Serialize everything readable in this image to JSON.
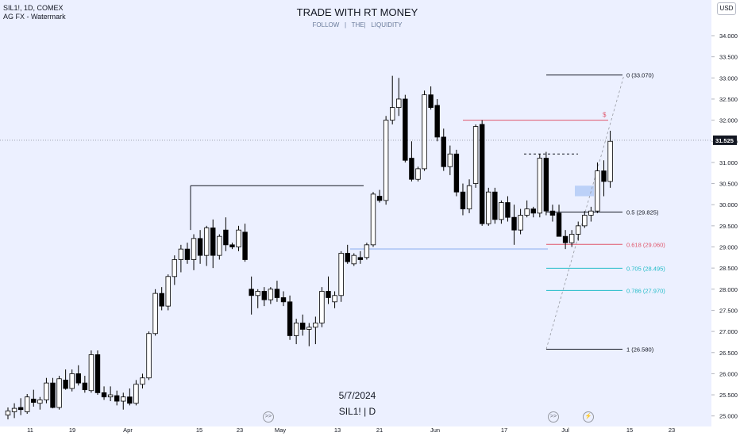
{
  "header": {
    "symbol_line": "SIL1!, 1D, COMEX",
    "sub_line": "AG FX - Watermark",
    "title": "TRADE WITH RT MONEY",
    "subtitle": "FOLLOW   |   THE|   LIQUIDITY"
  },
  "watermark": {
    "date": "5/7/2024",
    "symbol": "SIL1! | D"
  },
  "currency_button": "USD",
  "colors": {
    "background": "#ecf0ff",
    "candle_up_fill": "#ffffff",
    "candle_down_fill": "#000000",
    "fib_red": "#e0566b",
    "fib_cyan": "#22bcc8",
    "zone_blue": "#b7cdf7"
  },
  "chart_data": {
    "type": "candlestick",
    "title": "TRADE WITH RT MONEY",
    "y_axis": {
      "min": 24.9,
      "max": 34.2,
      "side": "right",
      "ticks": [
        "34.000",
        "33.500",
        "33.000",
        "32.500",
        "32.000",
        "31.500",
        "31.000",
        "30.500",
        "30.000",
        "29.500",
        "29.000",
        "28.500",
        "28.000",
        "27.500",
        "27.000",
        "26.500",
        "26.000",
        "25.500",
        "25.000"
      ]
    },
    "x_axis": {
      "labels": [
        "11",
        "19",
        "Apr",
        "15",
        "23",
        "May",
        "13",
        "21",
        "Jun",
        "17",
        "Jul",
        "15",
        "23"
      ]
    },
    "last_price": "31.525",
    "candles": [
      {
        "o": 25.02,
        "h": 25.2,
        "l": 24.92,
        "c": 25.12
      },
      {
        "o": 25.1,
        "h": 25.3,
        "l": 24.95,
        "c": 25.18
      },
      {
        "o": 25.2,
        "h": 25.42,
        "l": 25.02,
        "c": 25.15
      },
      {
        "o": 25.1,
        "h": 25.52,
        "l": 25.05,
        "c": 25.45
      },
      {
        "o": 25.4,
        "h": 25.62,
        "l": 25.22,
        "c": 25.32
      },
      {
        "o": 25.3,
        "h": 25.45,
        "l": 25.15,
        "c": 25.38
      },
      {
        "o": 25.38,
        "h": 25.9,
        "l": 25.3,
        "c": 25.78
      },
      {
        "o": 25.78,
        "h": 25.9,
        "l": 25.18,
        "c": 25.2
      },
      {
        "o": 25.2,
        "h": 25.95,
        "l": 25.15,
        "c": 25.88
      },
      {
        "o": 25.85,
        "h": 26.1,
        "l": 25.62,
        "c": 25.65
      },
      {
        "o": 25.65,
        "h": 26.1,
        "l": 25.58,
        "c": 26.0
      },
      {
        "o": 26.0,
        "h": 26.2,
        "l": 25.72,
        "c": 25.78
      },
      {
        "o": 25.78,
        "h": 25.95,
        "l": 25.55,
        "c": 25.62
      },
      {
        "o": 25.6,
        "h": 26.55,
        "l": 25.55,
        "c": 26.45
      },
      {
        "o": 26.45,
        "h": 26.55,
        "l": 25.5,
        "c": 25.55
      },
      {
        "o": 25.55,
        "h": 25.7,
        "l": 25.38,
        "c": 25.45
      },
      {
        "o": 25.45,
        "h": 25.7,
        "l": 25.35,
        "c": 25.5
      },
      {
        "o": 25.48,
        "h": 25.6,
        "l": 25.25,
        "c": 25.35
      },
      {
        "o": 25.35,
        "h": 25.55,
        "l": 25.15,
        "c": 25.45
      },
      {
        "o": 25.45,
        "h": 25.65,
        "l": 25.25,
        "c": 25.3
      },
      {
        "o": 25.3,
        "h": 25.85,
        "l": 25.25,
        "c": 25.75
      },
      {
        "o": 25.75,
        "h": 26.0,
        "l": 25.65,
        "c": 25.9
      },
      {
        "o": 25.9,
        "h": 27.0,
        "l": 25.85,
        "c": 26.95
      },
      {
        "o": 26.95,
        "h": 28.0,
        "l": 26.9,
        "c": 27.9
      },
      {
        "o": 27.9,
        "h": 28.05,
        "l": 27.5,
        "c": 27.6
      },
      {
        "o": 27.6,
        "h": 28.35,
        "l": 27.5,
        "c": 28.3
      },
      {
        "o": 28.3,
        "h": 28.8,
        "l": 28.1,
        "c": 28.7
      },
      {
        "o": 28.7,
        "h": 29.05,
        "l": 28.4,
        "c": 28.95
      },
      {
        "o": 28.95,
        "h": 29.1,
        "l": 28.6,
        "c": 28.7
      },
      {
        "o": 28.7,
        "h": 29.3,
        "l": 28.45,
        "c": 29.2
      },
      {
        "o": 29.2,
        "h": 29.4,
        "l": 28.6,
        "c": 28.8
      },
      {
        "o": 28.8,
        "h": 29.5,
        "l": 28.55,
        "c": 29.45
      },
      {
        "o": 29.45,
        "h": 29.65,
        "l": 28.5,
        "c": 28.8
      },
      {
        "o": 28.8,
        "h": 29.3,
        "l": 28.7,
        "c": 29.25
      },
      {
        "o": 29.4,
        "h": 29.7,
        "l": 28.9,
        "c": 29.05
      },
      {
        "o": 29.05,
        "h": 29.1,
        "l": 28.95,
        "c": 29.0
      },
      {
        "o": 29.0,
        "h": 29.5,
        "l": 28.9,
        "c": 29.4
      },
      {
        "o": 29.35,
        "h": 29.55,
        "l": 28.65,
        "c": 28.7
      },
      {
        "o": 28.0,
        "h": 28.3,
        "l": 27.4,
        "c": 27.85
      },
      {
        "o": 27.85,
        "h": 28.0,
        "l": 27.55,
        "c": 27.95
      },
      {
        "o": 27.95,
        "h": 28.05,
        "l": 27.6,
        "c": 27.75
      },
      {
        "o": 27.75,
        "h": 28.05,
        "l": 27.65,
        "c": 28.0
      },
      {
        "o": 28.0,
        "h": 28.2,
        "l": 27.7,
        "c": 27.8
      },
      {
        "o": 27.8,
        "h": 27.95,
        "l": 27.6,
        "c": 27.7
      },
      {
        "o": 27.7,
        "h": 27.85,
        "l": 26.8,
        "c": 26.9
      },
      {
        "o": 26.9,
        "h": 27.3,
        "l": 26.7,
        "c": 27.2
      },
      {
        "o": 27.2,
        "h": 27.4,
        "l": 26.9,
        "c": 27.05
      },
      {
        "o": 27.05,
        "h": 27.2,
        "l": 26.65,
        "c": 27.1
      },
      {
        "o": 27.1,
        "h": 27.35,
        "l": 26.7,
        "c": 27.2
      },
      {
        "o": 27.2,
        "h": 28.05,
        "l": 27.1,
        "c": 27.95
      },
      {
        "o": 27.95,
        "h": 28.3,
        "l": 27.65,
        "c": 27.8
      },
      {
        "o": 27.7,
        "h": 27.95,
        "l": 27.55,
        "c": 27.85
      },
      {
        "o": 27.85,
        "h": 28.9,
        "l": 27.7,
        "c": 28.85
      },
      {
        "o": 28.85,
        "h": 29.05,
        "l": 28.6,
        "c": 28.65
      },
      {
        "o": 28.6,
        "h": 28.85,
        "l": 28.55,
        "c": 28.8
      },
      {
        "o": 28.75,
        "h": 28.9,
        "l": 28.6,
        "c": 28.7
      },
      {
        "o": 28.75,
        "h": 29.1,
        "l": 28.7,
        "c": 29.05
      },
      {
        "o": 29.05,
        "h": 30.3,
        "l": 29.0,
        "c": 30.25
      },
      {
        "o": 30.2,
        "h": 30.35,
        "l": 30.05,
        "c": 30.1
      },
      {
        "o": 30.1,
        "h": 32.1,
        "l": 30.0,
        "c": 32.0
      },
      {
        "o": 32.0,
        "h": 33.05,
        "l": 31.9,
        "c": 32.3
      },
      {
        "o": 32.3,
        "h": 33.0,
        "l": 32.1,
        "c": 32.5
      },
      {
        "o": 32.5,
        "h": 32.6,
        "l": 31.0,
        "c": 31.05
      },
      {
        "o": 31.1,
        "h": 31.5,
        "l": 30.55,
        "c": 30.6
      },
      {
        "o": 30.6,
        "h": 30.9,
        "l": 30.55,
        "c": 30.85
      },
      {
        "o": 30.85,
        "h": 32.7,
        "l": 30.8,
        "c": 32.6
      },
      {
        "o": 32.6,
        "h": 32.8,
        "l": 32.25,
        "c": 32.3
      },
      {
        "o": 32.35,
        "h": 32.5,
        "l": 31.5,
        "c": 31.6
      },
      {
        "o": 31.6,
        "h": 31.8,
        "l": 30.8,
        "c": 30.9
      },
      {
        "o": 30.9,
        "h": 31.4,
        "l": 30.7,
        "c": 31.2
      },
      {
        "o": 31.2,
        "h": 31.3,
        "l": 30.2,
        "c": 30.3
      },
      {
        "o": 30.3,
        "h": 30.5,
        "l": 29.75,
        "c": 29.9
      },
      {
        "o": 29.9,
        "h": 30.6,
        "l": 29.8,
        "c": 30.45
      },
      {
        "o": 30.5,
        "h": 31.9,
        "l": 30.4,
        "c": 31.85
      },
      {
        "o": 31.9,
        "h": 32.0,
        "l": 29.5,
        "c": 29.55
      },
      {
        "o": 29.55,
        "h": 30.4,
        "l": 29.5,
        "c": 30.3
      },
      {
        "o": 30.3,
        "h": 30.4,
        "l": 29.55,
        "c": 29.65
      },
      {
        "o": 29.65,
        "h": 30.1,
        "l": 29.55,
        "c": 30.05
      },
      {
        "o": 30.05,
        "h": 30.2,
        "l": 29.6,
        "c": 29.7
      },
      {
        "o": 29.7,
        "h": 30.0,
        "l": 29.05,
        "c": 29.4
      },
      {
        "o": 29.4,
        "h": 29.9,
        "l": 29.3,
        "c": 29.75
      },
      {
        "o": 29.75,
        "h": 30.1,
        "l": 29.7,
        "c": 29.9
      },
      {
        "o": 29.9,
        "h": 29.95,
        "l": 29.7,
        "c": 29.8
      },
      {
        "o": 29.8,
        "h": 31.2,
        "l": 29.7,
        "c": 31.1
      },
      {
        "o": 31.1,
        "h": 31.25,
        "l": 29.75,
        "c": 29.85
      },
      {
        "o": 29.85,
        "h": 30.0,
        "l": 29.6,
        "c": 29.75
      },
      {
        "o": 29.8,
        "h": 30.0,
        "l": 29.25,
        "c": 29.25
      },
      {
        "o": 29.25,
        "h": 29.4,
        "l": 28.95,
        "c": 29.1
      },
      {
        "o": 29.1,
        "h": 29.4,
        "l": 29.0,
        "c": 29.3
      },
      {
        "o": 29.3,
        "h": 29.6,
        "l": 29.15,
        "c": 29.5
      },
      {
        "o": 29.5,
        "h": 29.85,
        "l": 29.45,
        "c": 29.75
      },
      {
        "o": 29.75,
        "h": 29.95,
        "l": 29.6,
        "c": 29.85
      },
      {
        "o": 29.85,
        "h": 31.0,
        "l": 29.8,
        "c": 30.8
      },
      {
        "o": 30.8,
        "h": 31.05,
        "l": 30.2,
        "c": 30.55
      },
      {
        "o": 30.55,
        "h": 31.75,
        "l": 30.4,
        "c": 31.5
      }
    ],
    "horizontal_lines": [
      {
        "name": "recent-high-line",
        "value": 30.45,
        "style": "solid"
      },
      {
        "name": "red-level-line",
        "value": 32.0,
        "style": "solid"
      },
      {
        "name": "dashed-level-line",
        "value": 31.2,
        "style": "dashed"
      },
      {
        "name": "demand-line",
        "value": 28.95,
        "style": "solid"
      }
    ],
    "zone": {
      "price_low": 30.2,
      "price_high": 30.45
    },
    "red_mark_label": "$",
    "fibonacci": [
      {
        "ratio": "0",
        "price": 33.07,
        "label": "0 (33.070)",
        "color": "#131722"
      },
      {
        "ratio": "0.5",
        "price": 29.825,
        "label": "0.5 (29.825)",
        "color": "#131722"
      },
      {
        "ratio": "0.618",
        "price": 29.06,
        "label": "0.618 (29.060)",
        "color": "#e0566b"
      },
      {
        "ratio": "0.705",
        "price": 28.495,
        "label": "0.705 (28.495)",
        "color": "#22bcc8"
      },
      {
        "ratio": "0.786",
        "price": 27.97,
        "label": "0.786 (27.970)",
        "color": "#22bcc8"
      },
      {
        "ratio": "1",
        "price": 26.58,
        "label": "1 (26.580)",
        "color": "#131722"
      }
    ]
  }
}
